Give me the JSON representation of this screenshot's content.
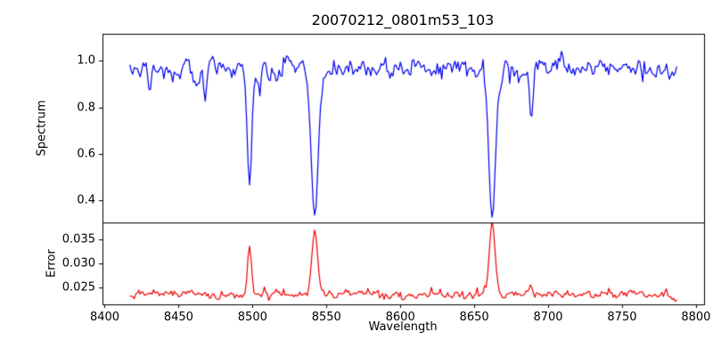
{
  "chart_data": {
    "type": "line",
    "title": "20070212_0801m53_103",
    "xlabel": "Wavelength",
    "xlim": [
      8398.5,
      8805.5
    ],
    "x_range": [
      8417,
      8787
    ],
    "x_ticks": [
      8400,
      8450,
      8500,
      8550,
      8600,
      8650,
      8700,
      8750,
      8800
    ],
    "x_tick_labels": [
      "8400",
      "8450",
      "8500",
      "8550",
      "8600",
      "8650",
      "8700",
      "8750",
      "8800"
    ],
    "grid": false,
    "legend": "none",
    "panels": [
      {
        "ylabel": "Spectrum",
        "color": "#0000ee",
        "ylim": [
          0.303,
          1.117
        ],
        "y_ticks": [
          0.4,
          0.6,
          0.8,
          1.0
        ],
        "y_tick_labels": [
          "0.4",
          "0.6",
          "0.8",
          "1.0"
        ],
        "baseline": 0.97,
        "noise_sigma": 0.02,
        "absorption_lines": [
          {
            "center": 8430.5,
            "depth": 0.1,
            "width": 1.0
          },
          {
            "center": 8468.0,
            "depth": 0.08,
            "width": 1.0
          },
          {
            "center": 8498.0,
            "depth": 0.52,
            "width": 1.5
          },
          {
            "center": 8505.0,
            "depth": 0.1,
            "width": 1.0
          },
          {
            "center": 8542.1,
            "depth": 0.66,
            "width": 2.4
          },
          {
            "center": 8662.1,
            "depth": 0.66,
            "width": 2.4
          },
          {
            "center": 8688.6,
            "depth": 0.22,
            "width": 1.2
          }
        ]
      },
      {
        "ylabel": "Error",
        "color": "#ee0000",
        "ylim": [
          0.0214,
          0.0386
        ],
        "y_ticks": [
          0.025,
          0.03,
          0.035
        ],
        "y_tick_labels": [
          "0.025",
          "0.030",
          "0.035"
        ],
        "baseline": 0.0235,
        "noise_sigma": 0.0004,
        "error_peaks": [
          {
            "center": 8498.0,
            "height": 0.01,
            "width": 1.3
          },
          {
            "center": 8542.1,
            "height": 0.0138,
            "width": 1.9
          },
          {
            "center": 8662.1,
            "height": 0.0143,
            "width": 1.9
          },
          {
            "center": 8688.6,
            "height": 0.0022,
            "width": 1.1
          }
        ]
      }
    ]
  }
}
